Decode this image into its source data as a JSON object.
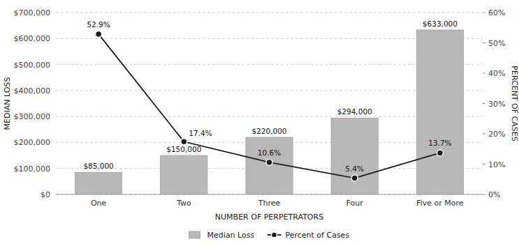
{
  "chart_data": {
    "type": "bar",
    "xlabel": "NUMBER OF PERPETRATORS",
    "ylabel": "MEDIAN LOSS",
    "y2label": "PERCENT OF CASES",
    "categories": [
      "One",
      "Two",
      "Three",
      "Four",
      "Five or More"
    ],
    "series": [
      {
        "name": "Median Loss",
        "type": "bar",
        "color": "#b8b8b8",
        "values": [
          85000,
          150000,
          220000,
          294000,
          633000
        ],
        "value_labels": [
          "$85,000",
          "$150,000",
          "$220,000",
          "$294,000",
          "$633,000"
        ]
      },
      {
        "name": "Percent of Cases",
        "type": "line",
        "axis": "y2",
        "color": "#1a1a1a",
        "marker": "circle",
        "values": [
          52.9,
          17.4,
          10.6,
          5.4,
          13.7
        ],
        "value_labels": [
          "52.9%",
          "17.4%",
          "10.6%",
          "5.4%",
          "13.7%"
        ]
      }
    ],
    "ylim": [
      0,
      700000
    ],
    "yticks": [
      {
        "value": 0,
        "label": "$0"
      },
      {
        "value": 100000,
        "label": "$100,000"
      },
      {
        "value": 200000,
        "label": "$200,000"
      },
      {
        "value": 300000,
        "label": "$300,000"
      },
      {
        "value": 400000,
        "label": "$400,000"
      },
      {
        "value": 500000,
        "label": "$500,000"
      },
      {
        "value": 600000,
        "label": "$600,000"
      },
      {
        "value": 700000,
        "label": "$700,000"
      }
    ],
    "y2lim": [
      0,
      60
    ],
    "y2ticks": [
      {
        "value": 0,
        "label": "0%"
      },
      {
        "value": 10,
        "label": "10%"
      },
      {
        "value": 20,
        "label": "20%"
      },
      {
        "value": 30,
        "label": "30%"
      },
      {
        "value": 40,
        "label": "40%"
      },
      {
        "value": 50,
        "label": "50%"
      },
      {
        "value": 60,
        "label": "60%"
      }
    ],
    "grid": true,
    "legend": "bottom",
    "data_labels": true
  }
}
